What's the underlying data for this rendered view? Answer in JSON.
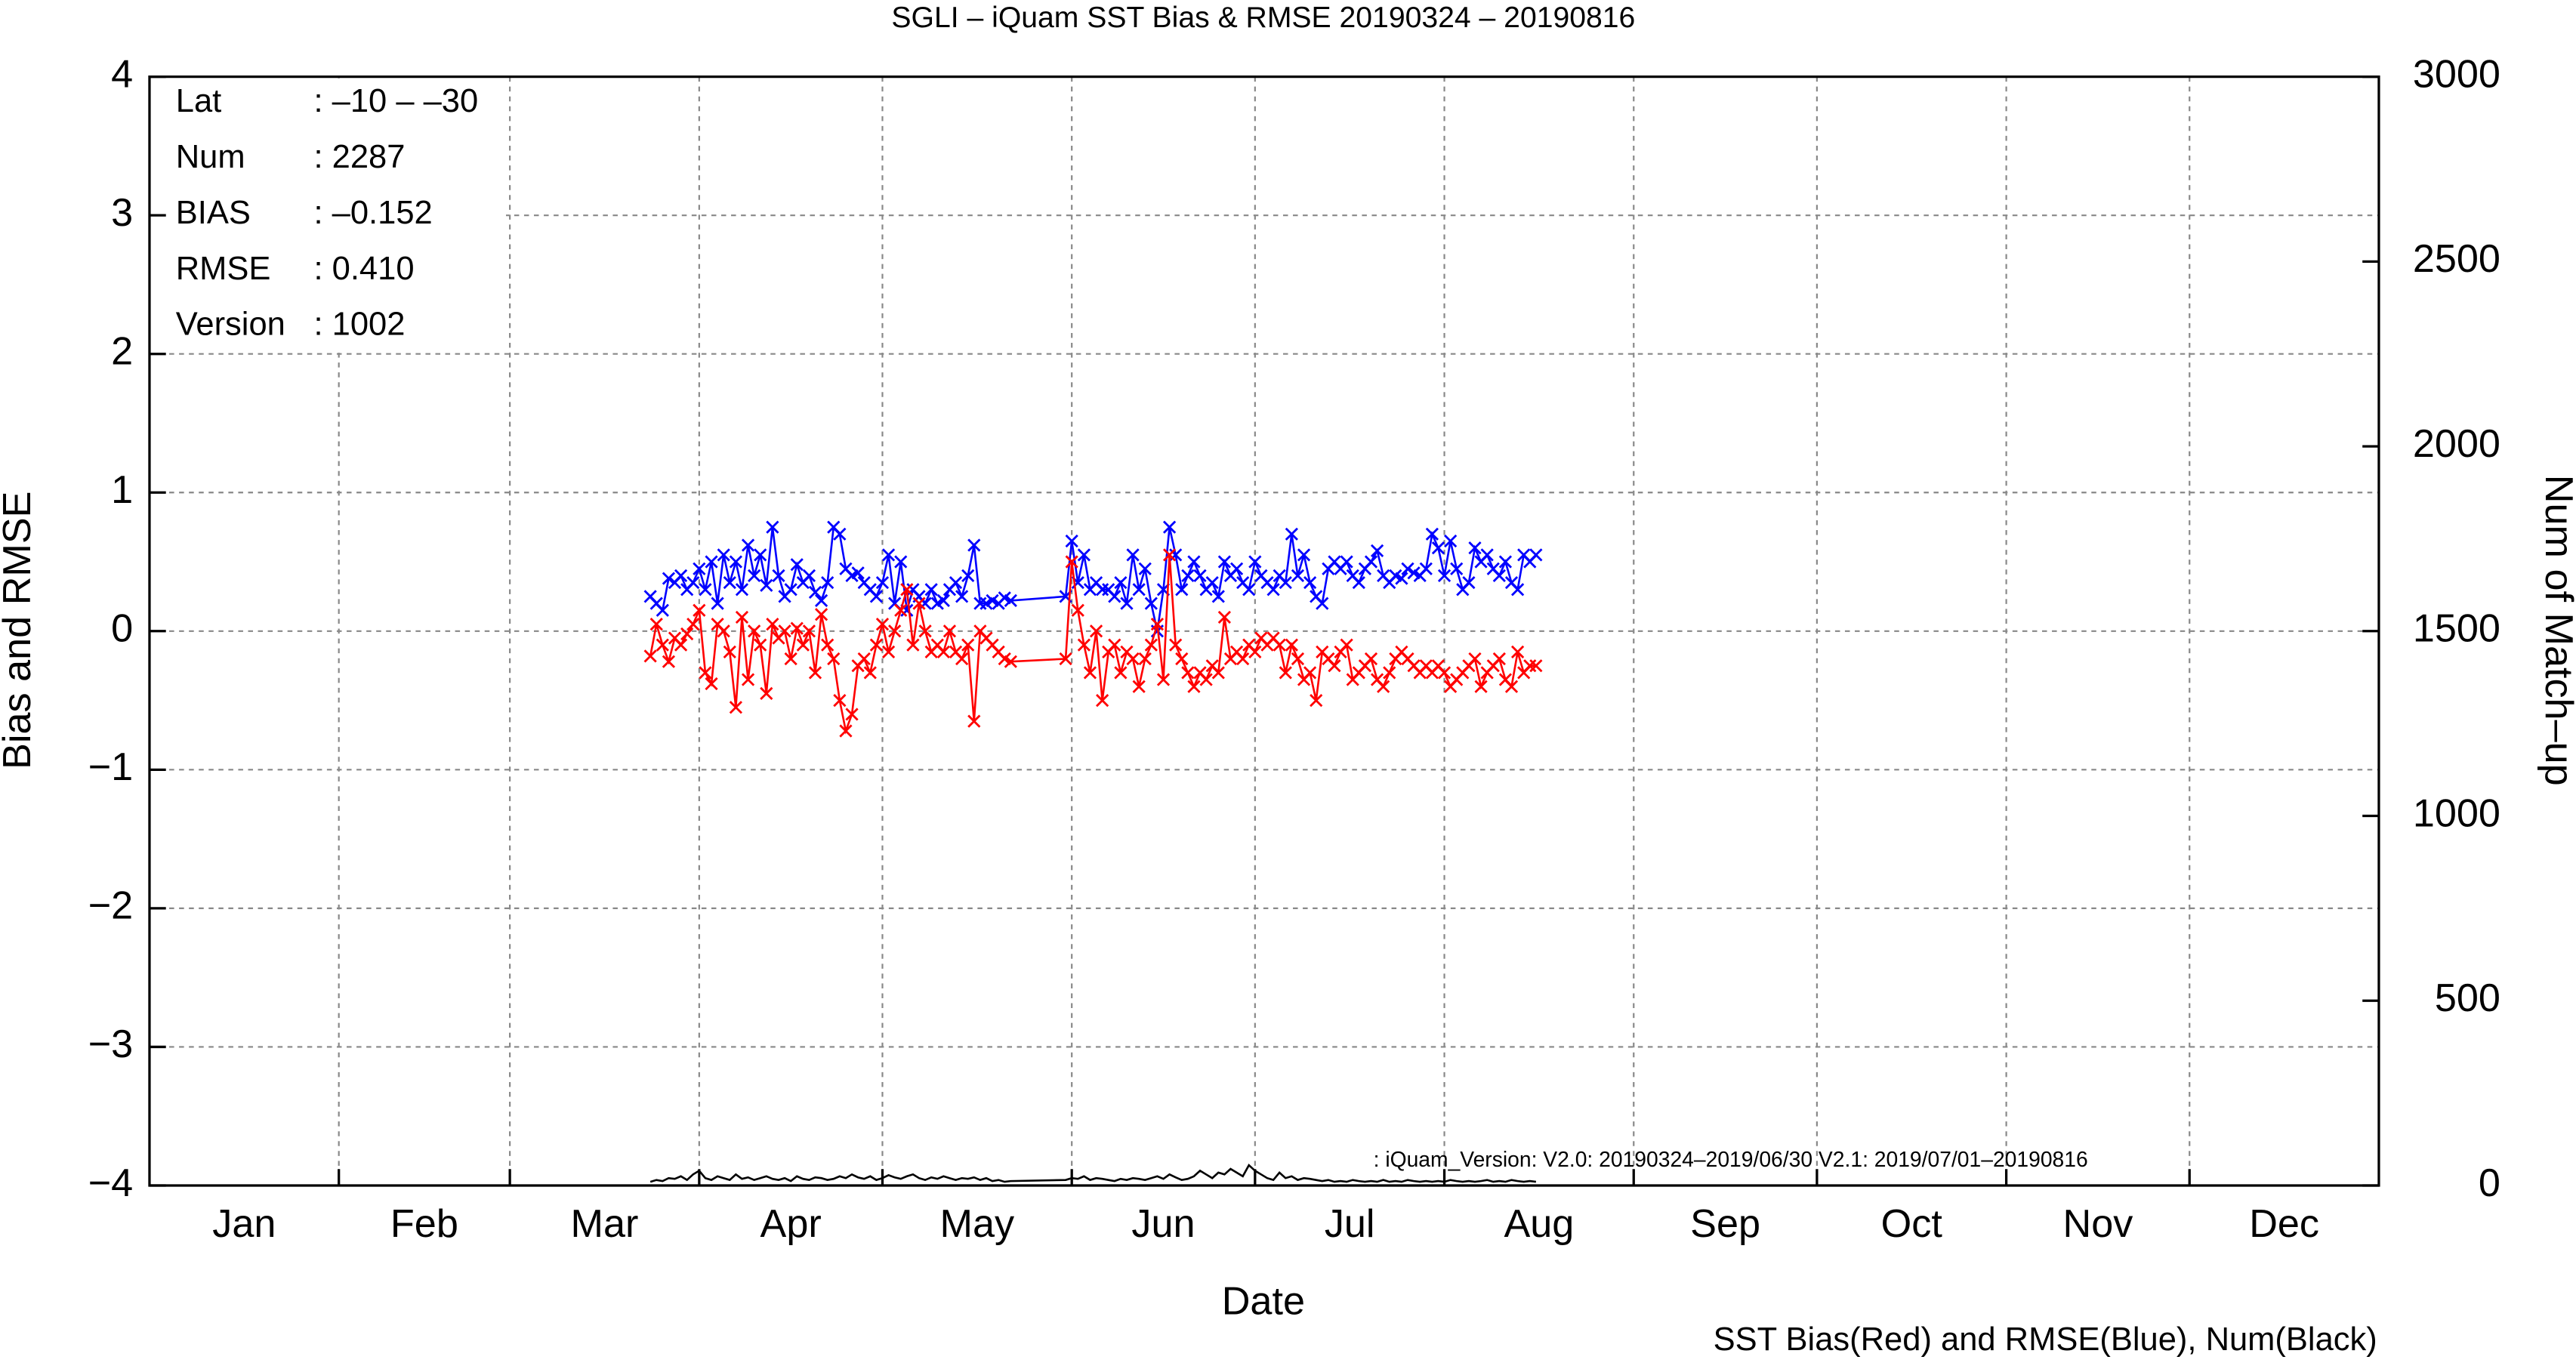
{
  "chart_data": {
    "type": "line",
    "title": "SGLI – iQuam  SST Bias & RMSE 20190324 – 20190816",
    "y_label": "Bias and RMSE",
    "y2_label": "Num of Match–up",
    "x_label": "Date",
    "footnote": "SST Bias(Red) and RMSE(Blue), Num(Black)",
    "annotation": ": iQuam_Version: V2.0: 20190324–2019/06/30 V2.1: 2019/07/01–20190816",
    "stats": [
      [
        "Lat",
        ": –10 – –30"
      ],
      [
        "Num",
        ": 2287"
      ],
      [
        "BIAS",
        ": –0.152"
      ],
      [
        "RMSE",
        ": 0.410"
      ],
      [
        "Version",
        ": 1002"
      ]
    ],
    "grid": true,
    "xlim": [
      0,
      365
    ],
    "xticks": [
      {
        "value": 15.5,
        "label": "Jan"
      },
      {
        "value": 45,
        "label": "Feb"
      },
      {
        "value": 74.5,
        "label": "Mar"
      },
      {
        "value": 105,
        "label": "Apr"
      },
      {
        "value": 135.5,
        "label": "May"
      },
      {
        "value": 166,
        "label": "Jun"
      },
      {
        "value": 196.5,
        "label": "Jul"
      },
      {
        "value": 227.5,
        "label": "Aug"
      },
      {
        "value": 258,
        "label": "Sep"
      },
      {
        "value": 288.5,
        "label": "Oct"
      },
      {
        "value": 319,
        "label": "Nov"
      },
      {
        "value": 349.5,
        "label": "Dec"
      }
    ],
    "xgrid": [
      31,
      59,
      90,
      120,
      151,
      181,
      212,
      243,
      273,
      304,
      334
    ],
    "ylim": [
      -4,
      4
    ],
    "yticks": [
      {
        "value": -4,
        "label": "−4"
      },
      {
        "value": -3,
        "label": "−3"
      },
      {
        "value": -2,
        "label": "−2"
      },
      {
        "value": -1,
        "label": "−1"
      },
      0,
      1,
      2,
      3,
      4
    ],
    "y2lim": [
      0,
      3000
    ],
    "y2ticks": [
      0,
      500,
      1000,
      1500,
      2000,
      2500,
      3000
    ],
    "x": [
      82,
      83,
      84,
      85,
      86,
      87,
      88,
      89,
      90,
      91,
      92,
      93,
      94,
      95,
      96,
      97,
      98,
      99,
      100,
      101,
      102,
      103,
      104,
      105,
      106,
      107,
      108,
      109,
      110,
      111,
      112,
      113,
      114,
      115,
      116,
      117,
      118,
      119,
      120,
      121,
      122,
      123,
      124,
      125,
      126,
      127,
      128,
      129,
      130,
      131,
      132,
      133,
      134,
      135,
      136,
      137,
      138,
      139,
      140,
      141,
      150,
      151,
      152,
      153,
      154,
      155,
      156,
      157,
      158,
      159,
      160,
      161,
      162,
      163,
      164,
      165,
      166,
      167,
      168,
      169,
      170,
      171,
      172,
      173,
      174,
      175,
      176,
      177,
      178,
      179,
      180,
      181,
      182,
      183,
      184,
      185,
      186,
      187,
      188,
      189,
      190,
      191,
      192,
      193,
      194,
      195,
      196,
      197,
      198,
      199,
      200,
      201,
      202,
      203,
      204,
      205,
      206,
      207,
      208,
      209,
      210,
      211,
      212,
      213,
      214,
      215,
      216,
      217,
      218,
      219,
      220,
      221,
      222,
      223,
      224,
      225,
      226,
      227
    ],
    "series": [
      {
        "color": "#0000ff",
        "marker": "x",
        "axis": "y",
        "values": [
          0.25,
          0.2,
          0.15,
          0.38,
          0.35,
          0.4,
          0.3,
          0.35,
          0.45,
          0.3,
          0.5,
          0.2,
          0.55,
          0.35,
          0.5,
          0.3,
          0.62,
          0.4,
          0.55,
          0.33,
          0.75,
          0.4,
          0.25,
          0.3,
          0.48,
          0.35,
          0.4,
          0.28,
          0.22,
          0.35,
          0.75,
          0.7,
          0.45,
          0.4,
          0.42,
          0.35,
          0.3,
          0.25,
          0.35,
          0.55,
          0.2,
          0.5,
          0.15,
          0.3,
          0.25,
          0.2,
          0.3,
          0.2,
          0.22,
          0.3,
          0.35,
          0.25,
          0.4,
          0.62,
          0.2,
          0.2,
          0.22,
          0.2,
          0.24,
          0.22,
          0.25,
          0.65,
          0.35,
          0.55,
          0.3,
          0.35,
          0.3,
          0.3,
          0.25,
          0.35,
          0.2,
          0.55,
          0.3,
          0.45,
          0.2,
          0.0,
          0.3,
          0.75,
          0.55,
          0.3,
          0.4,
          0.5,
          0.4,
          0.3,
          0.35,
          0.25,
          0.5,
          0.4,
          0.45,
          0.35,
          0.3,
          0.5,
          0.4,
          0.35,
          0.3,
          0.4,
          0.35,
          0.7,
          0.4,
          0.55,
          0.35,
          0.25,
          0.2,
          0.45,
          0.5,
          0.45,
          0.5,
          0.4,
          0.35,
          0.45,
          0.5,
          0.58,
          0.4,
          0.35,
          0.4,
          0.38,
          0.45,
          0.42,
          0.4,
          0.45,
          0.7,
          0.6,
          0.4,
          0.65,
          0.45,
          0.3,
          0.35,
          0.6,
          0.5,
          0.55,
          0.45,
          0.4,
          0.5,
          0.35,
          0.3,
          0.55,
          0.5,
          0.55
        ]
      },
      {
        "color": "#ff0000",
        "marker": "x",
        "axis": "y",
        "values": [
          -0.18,
          0.05,
          -0.1,
          -0.22,
          -0.05,
          -0.1,
          -0.02,
          0.05,
          0.15,
          -0.3,
          -0.38,
          0.05,
          0.0,
          -0.15,
          -0.55,
          0.1,
          -0.35,
          0.0,
          -0.1,
          -0.45,
          0.05,
          -0.05,
          0.0,
          -0.2,
          0.02,
          -0.1,
          0.0,
          -0.3,
          0.12,
          -0.1,
          -0.2,
          -0.5,
          -0.72,
          -0.6,
          -0.25,
          -0.2,
          -0.3,
          -0.1,
          0.05,
          -0.15,
          0.0,
          0.15,
          0.3,
          -0.1,
          0.2,
          0.0,
          -0.15,
          -0.1,
          -0.15,
          0.0,
          -0.15,
          -0.2,
          -0.1,
          -0.65,
          0.0,
          -0.05,
          -0.1,
          -0.15,
          -0.2,
          -0.22,
          -0.2,
          0.5,
          0.15,
          -0.1,
          -0.3,
          0.0,
          -0.5,
          -0.15,
          -0.1,
          -0.3,
          -0.15,
          -0.2,
          -0.4,
          -0.2,
          -0.1,
          0.05,
          -0.35,
          0.55,
          -0.1,
          -0.2,
          -0.3,
          -0.4,
          -0.3,
          -0.35,
          -0.25,
          -0.3,
          0.1,
          -0.2,
          -0.15,
          -0.2,
          -0.1,
          -0.15,
          -0.05,
          -0.1,
          -0.05,
          -0.1,
          -0.3,
          -0.1,
          -0.2,
          -0.35,
          -0.3,
          -0.5,
          -0.15,
          -0.2,
          -0.25,
          -0.15,
          -0.1,
          -0.35,
          -0.3,
          -0.25,
          -0.2,
          -0.35,
          -0.4,
          -0.3,
          -0.2,
          -0.15,
          -0.2,
          -0.25,
          -0.3,
          -0.25,
          -0.3,
          -0.25,
          -0.3,
          -0.4,
          -0.35,
          -0.3,
          -0.25,
          -0.2,
          -0.4,
          -0.3,
          -0.25,
          -0.2,
          -0.35,
          -0.4,
          -0.15,
          -0.3,
          -0.25,
          -0.25
        ]
      },
      {
        "color": "#000000",
        "axis": "y2",
        "values": [
          10,
          15,
          12,
          20,
          18,
          25,
          15,
          30,
          40,
          20,
          15,
          25,
          20,
          15,
          30,
          18,
          22,
          15,
          20,
          25,
          18,
          15,
          20,
          12,
          25,
          18,
          15,
          22,
          20,
          15,
          18,
          25,
          20,
          30,
          22,
          18,
          25,
          15,
          20,
          28,
          22,
          18,
          25,
          30,
          20,
          15,
          22,
          18,
          25,
          20,
          15,
          20,
          18,
          22,
          15,
          20,
          12,
          15,
          10,
          12,
          15,
          20,
          18,
          25,
          15,
          20,
          18,
          15,
          12,
          18,
          15,
          20,
          18,
          15,
          20,
          25,
          18,
          30,
          22,
          15,
          18,
          25,
          40,
          30,
          20,
          35,
          30,
          45,
          35,
          25,
          55,
          40,
          30,
          20,
          15,
          35,
          20,
          25,
          15,
          20,
          18,
          15,
          12,
          15,
          10,
          12,
          10,
          15,
          12,
          10,
          12,
          10,
          15,
          10,
          12,
          10,
          15,
          12,
          10,
          12,
          10,
          12,
          10,
          15,
          12,
          10,
          12,
          10,
          12,
          15,
          10,
          12,
          10,
          15,
          12,
          10,
          12,
          10
        ]
      }
    ]
  }
}
